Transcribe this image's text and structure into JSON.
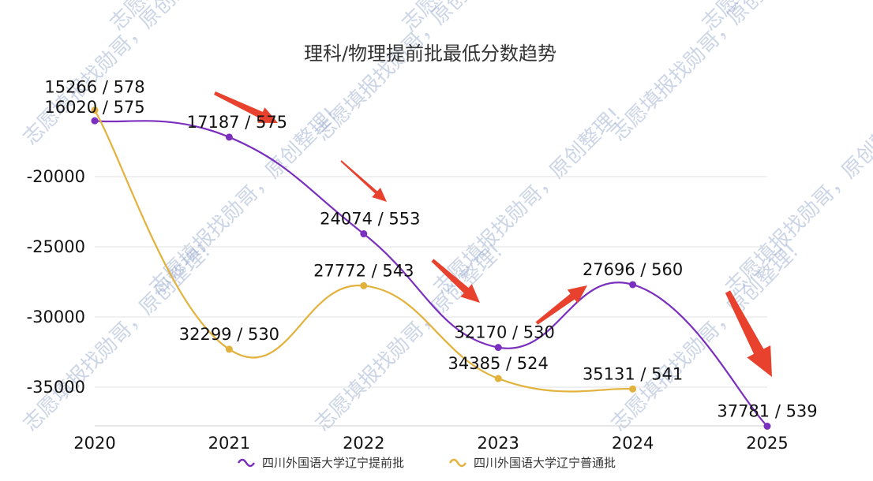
{
  "chart_data": {
    "type": "line",
    "title": "理科/物理提前批最低分数趋势",
    "x": [
      "2020",
      "2021",
      "2022",
      "2023",
      "2024",
      "2025"
    ],
    "y_ticks": [
      "-20000",
      "-25000",
      "-30000",
      "-35000"
    ],
    "series": [
      {
        "name": "四川外国语大学辽宁提前批",
        "color": "#7b2fbe",
        "values": [
          -16020,
          -17187,
          -24074,
          -32170,
          -27696,
          -37781
        ],
        "labels": [
          "16020 / 575",
          "17187 / 575",
          "24074 / 553",
          "32170 / 530",
          "27696 / 560",
          "37781 / 539"
        ]
      },
      {
        "name": "四川外国语大学辽宁普通批",
        "color": "#e2b23c",
        "values": [
          -15266,
          -32299,
          -27772,
          -34385,
          -35131,
          null
        ],
        "labels": [
          "15266 / 578",
          "32299 / 530",
          "27772 / 543",
          "34385 / 524",
          "35131 / 541",
          ""
        ]
      }
    ],
    "ylim": [
      -38000,
      -14500
    ],
    "grid": true,
    "legend_position": "bottom"
  },
  "watermark": {
    "text": "志愿填报找勋哥，原创整理!"
  }
}
